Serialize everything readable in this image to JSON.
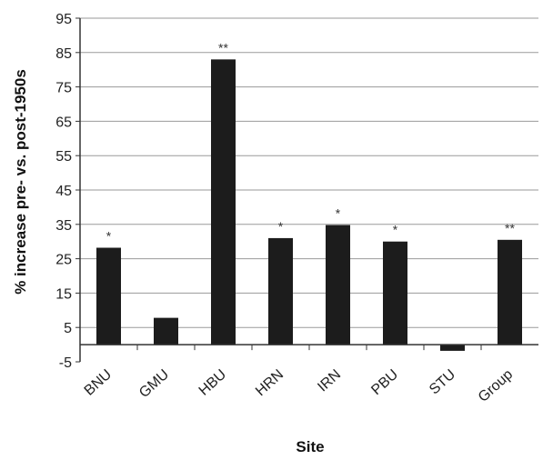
{
  "chart_data": {
    "type": "bar",
    "categories": [
      "BNU",
      "GMU",
      "HBU",
      "HRN",
      "IRN",
      "PBU",
      "STU",
      "Group"
    ],
    "values": [
      28.2,
      7.8,
      83.0,
      31.0,
      34.8,
      30.0,
      -1.8,
      30.5
    ],
    "significance": [
      "*",
      "",
      "**",
      "*",
      "*",
      "*",
      "",
      "**"
    ],
    "xlabel": "Site",
    "ylabel": "% increase pre- vs. post-1950s",
    "ylim": [
      -5,
      95
    ],
    "yticks": [
      95,
      85,
      75,
      65,
      55,
      45,
      35,
      25,
      15,
      5,
      -5
    ],
    "grid": true,
    "bar_color": "#1c1c1c",
    "grid_color": "#9a9a9a"
  }
}
